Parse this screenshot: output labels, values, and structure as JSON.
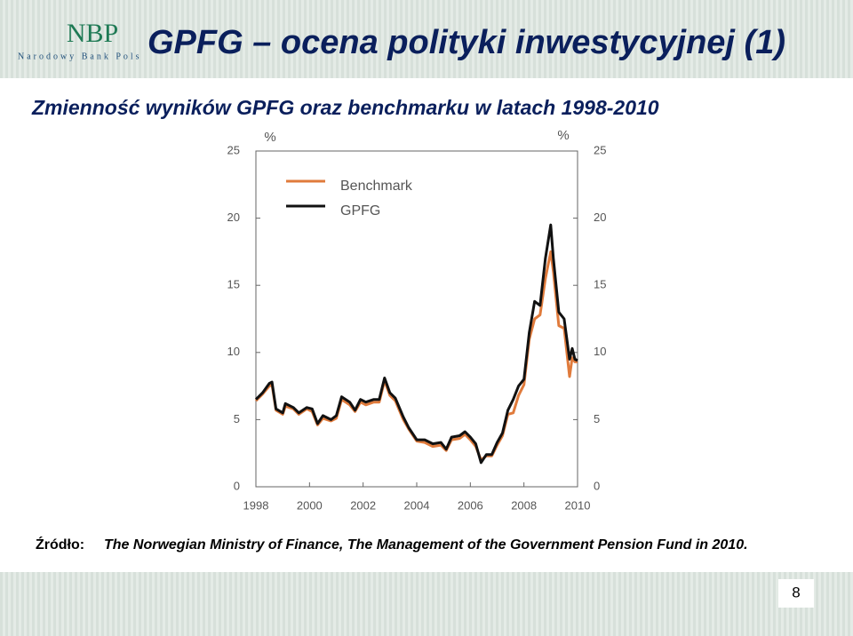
{
  "header": {
    "logo": "NBP",
    "logo_subtitle": "Narodowy Bank Pols",
    "title": "GPFG – ocena polityki inwestycyjnej (1)"
  },
  "subtitle": "Zmienność wyników GPFG oraz benchmarku w latach 1998-2010",
  "source": {
    "label": "Źródło:",
    "text": "The Norwegian Ministry of Finance, The Management of the Government Pension Fund in 2010."
  },
  "page_number": "8",
  "chart_data": {
    "type": "line",
    "y_label": "%",
    "y2_label": "%",
    "x": [
      1998.0,
      1998.25,
      1998.5,
      1998.6,
      1998.75,
      1999.0,
      1999.1,
      1999.4,
      1999.6,
      1999.9,
      2000.1,
      2000.3,
      2000.5,
      2000.8,
      2001.0,
      2001.2,
      2001.5,
      2001.7,
      2001.9,
      2002.1,
      2002.4,
      2002.6,
      2002.8,
      2003.0,
      2003.2,
      2003.5,
      2003.7,
      2004.0,
      2004.3,
      2004.6,
      2004.9,
      2005.1,
      2005.3,
      2005.6,
      2005.8,
      2006.0,
      2006.2,
      2006.4,
      2006.6,
      2006.8,
      2007.0,
      2007.2,
      2007.4,
      2007.6,
      2007.8,
      2008.0,
      2008.2,
      2008.4,
      2008.6,
      2008.8,
      2009.0,
      2009.1,
      2009.3,
      2009.5,
      2009.7,
      2009.8,
      2009.9,
      2010.0
    ],
    "series": [
      {
        "name": "Benchmark",
        "color": "#e07b3c",
        "values": [
          6.4,
          6.9,
          7.5,
          7.6,
          5.7,
          5.4,
          6.0,
          5.8,
          5.4,
          5.8,
          5.6,
          4.6,
          5.1,
          4.9,
          5.1,
          6.5,
          6.1,
          5.6,
          6.3,
          6.1,
          6.3,
          6.3,
          7.9,
          6.8,
          6.4,
          5.0,
          4.3,
          3.4,
          3.3,
          3.0,
          3.1,
          2.7,
          3.5,
          3.6,
          3.9,
          3.5,
          3.0,
          2.0,
          2.3,
          2.3,
          3.1,
          3.8,
          5.4,
          5.5,
          6.8,
          7.6,
          11.0,
          12.5,
          12.8,
          15.5,
          17.5,
          16.0,
          12.0,
          11.8,
          8.2,
          9.6,
          9.3,
          9.3
        ]
      },
      {
        "name": "GPFG",
        "color": "#111111",
        "values": [
          6.5,
          7.0,
          7.7,
          7.8,
          5.8,
          5.5,
          6.2,
          5.9,
          5.5,
          5.9,
          5.8,
          4.7,
          5.3,
          5.0,
          5.3,
          6.7,
          6.3,
          5.7,
          6.5,
          6.3,
          6.5,
          6.5,
          8.1,
          7.0,
          6.6,
          5.2,
          4.4,
          3.5,
          3.5,
          3.2,
          3.3,
          2.8,
          3.7,
          3.8,
          4.1,
          3.7,
          3.2,
          1.8,
          2.4,
          2.4,
          3.3,
          4.0,
          5.7,
          6.5,
          7.5,
          8.0,
          11.5,
          13.8,
          13.5,
          17.0,
          19.5,
          17.0,
          13.0,
          12.5,
          9.5,
          10.3,
          9.5,
          9.4
        ]
      }
    ],
    "xlim": [
      1998,
      2010
    ],
    "xticks": [
      1998,
      2000,
      2002,
      2004,
      2006,
      2008,
      2010
    ],
    "ylim": [
      0,
      25
    ],
    "yticks": [
      0,
      5,
      10,
      15,
      20,
      25
    ],
    "y2lim": [
      0,
      25
    ],
    "y2ticks": [
      0,
      5,
      10,
      15,
      20,
      25
    ],
    "legend": "top-left",
    "grid": false
  }
}
